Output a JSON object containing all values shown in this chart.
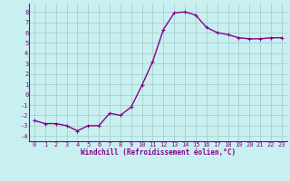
{
  "x": [
    0,
    1,
    2,
    3,
    4,
    5,
    6,
    7,
    8,
    9,
    10,
    11,
    12,
    13,
    14,
    15,
    16,
    17,
    18,
    19,
    20,
    21,
    22,
    23
  ],
  "y": [
    -2.5,
    -2.8,
    -2.8,
    -3.0,
    -3.5,
    -3.0,
    -3.0,
    -1.8,
    -2.0,
    -1.2,
    0.9,
    3.2,
    6.3,
    7.9,
    8.0,
    7.7,
    6.5,
    6.0,
    5.8,
    5.5,
    5.4,
    5.4,
    5.5,
    5.5
  ],
  "line_color": "#880088",
  "marker": "+",
  "marker_size": 3,
  "background_color": "#c8f0f0",
  "grid_color": "#a0c8c8",
  "xlabel": "Windchill (Refroidissement éolien,°C)",
  "xlabel_color": "#880088",
  "tick_color": "#880088",
  "ylim": [
    -4.5,
    8.8
  ],
  "xlim": [
    -0.5,
    23.5
  ],
  "yticks": [
    -4,
    -3,
    -2,
    -1,
    0,
    1,
    2,
    3,
    4,
    5,
    6,
    7,
    8
  ],
  "xticks": [
    0,
    1,
    2,
    3,
    4,
    5,
    6,
    7,
    8,
    9,
    10,
    11,
    12,
    13,
    14,
    15,
    16,
    17,
    18,
    19,
    20,
    21,
    22,
    23
  ],
  "line_width": 1.0,
  "tick_fontsize": 5.0,
  "xlabel_fontsize": 5.5
}
